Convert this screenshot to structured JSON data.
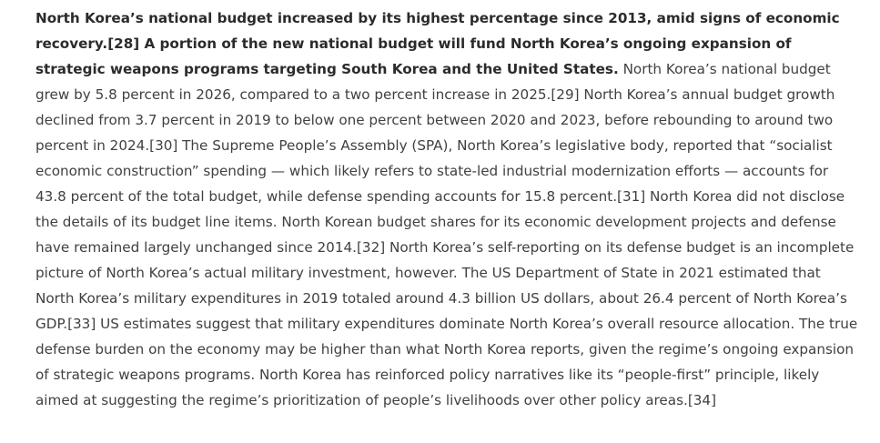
{
  "article": {
    "lead": "North Korea’s national budget increased by its highest percentage since 2013, amid signs of economic recovery.[28] A portion of the new national budget will fund North Korea’s ongoing expansion of strategic weapons programs targeting South Korea and the United States.",
    "body": "North Korea’s national budget grew by 5.8 percent in 2026, compared to a two percent increase in 2025.[29] North Korea’s annual budget growth declined from 3.7 percent in 2019 to below one percent between 2020 and 2023, before rebounding to around two percent in 2024.[30] The Supreme People’s Assembly (SPA), North Korea’s legislative body, reported that “socialist economic construction” spending — which likely refers to state-led industrial modernization efforts — accounts for 43.8 percent of the total budget, while defense spending accounts for 15.8 percent.[31] North Korea did not disclose the details of its budget line items. North Korean budget shares for its economic development projects and defense have remained largely unchanged since 2014.[32] North Korea’s self-reporting on its defense budget is an incomplete picture of North Korea’s actual military investment, however. The US Department of State in 2021 estimated that North Korea’s military expenditures in 2019 totaled around 4.3 billion US dollars, about 26.4 percent of North Korea’s GDP.[33] US estimates suggest that military expenditures dominate North Korea’s overall resource allocation. The true defense burden on the economy may be higher than what North Korea reports, given the regime’s ongoing expansion of strategic weapons programs. North Korea has reinforced policy narratives like its “people-first” principle, likely aimed at suggesting the regime’s prioritization of people’s livelihoods over other policy areas.[34]"
  }
}
